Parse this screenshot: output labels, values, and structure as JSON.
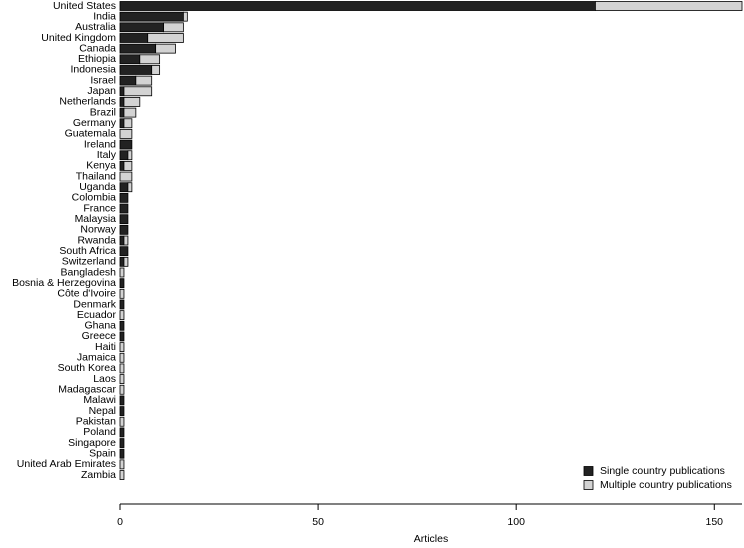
{
  "chart_data": {
    "type": "stacked-barh",
    "x_label": "Articles",
    "categories": [
      "United States",
      "India",
      "Australia",
      "United Kingdom",
      "Canada",
      "Ethiopia",
      "Indonesia",
      "Israel",
      "Japan",
      "Netherlands",
      "Brazil",
      "Germany",
      "Guatemala",
      "Ireland",
      "Italy",
      "Kenya",
      "Thailand",
      "Uganda",
      "Colombia",
      "France",
      "Malaysia",
      "Norway",
      "Rwanda",
      "South Africa",
      "Switzerland",
      "Bangladesh",
      "Bosnia & Herzegovina",
      "Côte d'Ivoire",
      "Denmark",
      "Ecuador",
      "Ghana",
      "Greece",
      "Haiti",
      "Jamaica",
      "South Korea",
      "Laos",
      "Madagascar",
      "Malawi",
      "Nepal",
      "Pakistan",
      "Poland",
      "Singapore",
      "Spain",
      "United Arab Emirates",
      "Zambia"
    ],
    "series": [
      {
        "name": "Single country publications",
        "color": "#222222",
        "values": [
          120,
          16,
          11,
          7,
          9,
          5,
          8,
          4,
          1,
          1,
          1,
          1,
          0,
          3,
          2,
          1,
          0,
          2,
          2,
          2,
          2,
          2,
          1,
          2,
          1,
          0,
          1,
          0,
          1,
          0,
          1,
          1,
          0,
          0,
          0,
          0,
          0,
          1,
          1,
          0,
          1,
          1,
          1,
          0,
          0
        ]
      },
      {
        "name": "Multiple country publications",
        "color": "#d3d3d3",
        "values": [
          37,
          1,
          5,
          9,
          5,
          5,
          2,
          4,
          7,
          4,
          3,
          2,
          3,
          0,
          1,
          2,
          3,
          1,
          0,
          0,
          0,
          0,
          1,
          0,
          1,
          1,
          0,
          1,
          0,
          1,
          0,
          0,
          1,
          1,
          1,
          1,
          1,
          0,
          0,
          1,
          0,
          0,
          0,
          1,
          1
        ]
      }
    ],
    "xlim": [
      0,
      157
    ],
    "xticks": [
      0,
      50,
      100,
      150
    ],
    "legend": "lower right"
  }
}
